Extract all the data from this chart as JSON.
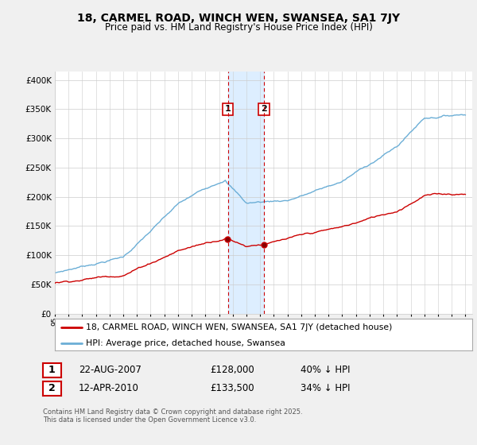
{
  "title": "18, CARMEL ROAD, WINCH WEN, SWANSEA, SA1 7JY",
  "subtitle": "Price paid vs. HM Land Registry's House Price Index (HPI)",
  "ytick_values": [
    0,
    50000,
    100000,
    150000,
    200000,
    250000,
    300000,
    350000,
    400000
  ],
  "ylim": [
    0,
    415000
  ],
  "xlim": [
    1995.0,
    2025.5
  ],
  "t1_x": 2007.64,
  "t2_x": 2010.28,
  "t1_price": 128000,
  "t2_price": 133500,
  "legend_line1": "18, CARMEL ROAD, WINCH WEN, SWANSEA, SA1 7JY (detached house)",
  "legend_line2": "HPI: Average price, detached house, Swansea",
  "row1_date": "22-AUG-2007",
  "row1_price": "£128,000",
  "row1_pct": "40% ↓ HPI",
  "row2_date": "12-APR-2010",
  "row2_price": "£133,500",
  "row2_pct": "34% ↓ HPI",
  "footer": "Contains HM Land Registry data © Crown copyright and database right 2025.\nThis data is licensed under the Open Government Licence v3.0.",
  "bg_color": "#f0f0f0",
  "plot_bg": "#ffffff",
  "hpi_color": "#6baed6",
  "price_color": "#cc0000",
  "highlight_color": "#ddeeff"
}
